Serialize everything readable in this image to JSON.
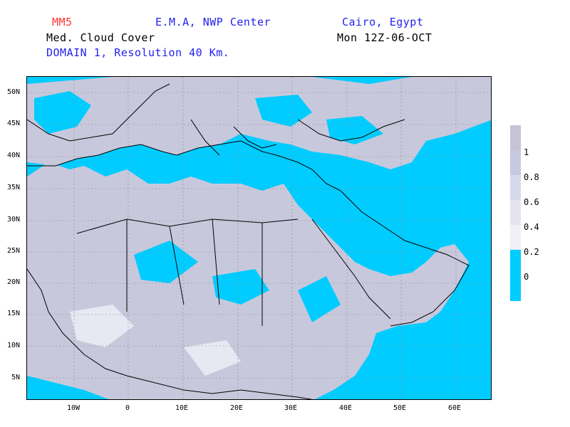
{
  "header": {
    "model": "MM5",
    "center": "E.M.A, NWP Center",
    "location": "Cairo, Egypt",
    "field": "Med. Cloud Cover",
    "valid_time": "Mon 12Z-06-OCT",
    "domain": "DOMAIN 1, Resolution 40 Km."
  },
  "colors": {
    "model": "#ff3333",
    "center": "#2222ee",
    "location": "#2222ee",
    "field": "#000000",
    "valid_time": "#000000",
    "domain": "#2222ee",
    "clear": "#00ccff",
    "cloud_low": "#e8e8f2",
    "cloud_mid": "#c8c8dc",
    "cloud_high": "#bdbdd0"
  },
  "map": {
    "lat_labels": [
      "50N",
      "45N",
      "40N",
      "35N",
      "30N",
      "25N",
      "20N",
      "15N",
      "10N",
      "5N"
    ],
    "lon_labels": [
      "10W",
      "0",
      "10E",
      "20E",
      "30E",
      "40E",
      "50E",
      "60E"
    ]
  },
  "legend": {
    "labels": [
      "1",
      "0.8",
      "0.6",
      "0.4",
      "0.2",
      "0"
    ],
    "colors": [
      "#c4c4d6",
      "#c8c8e0",
      "#d8d8ec",
      "#e4e4ee",
      "#f0f0f8",
      "#00ccff"
    ]
  }
}
